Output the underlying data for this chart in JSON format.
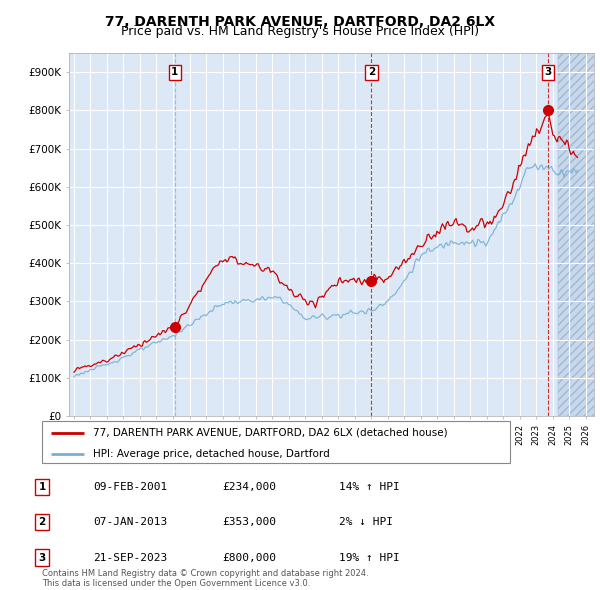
{
  "title": "77, DARENTH PARK AVENUE, DARTFORD, DA2 6LX",
  "subtitle": "Price paid vs. HM Land Registry's House Price Index (HPI)",
  "ylim": [
    0,
    950000
  ],
  "yticks": [
    0,
    100000,
    200000,
    300000,
    400000,
    500000,
    600000,
    700000,
    800000,
    900000
  ],
  "ytick_labels": [
    "£0",
    "£100K",
    "£200K",
    "£300K",
    "£400K",
    "£500K",
    "£600K",
    "£700K",
    "£800K",
    "£900K"
  ],
  "sale_years_float": [
    2001.107,
    2013.019,
    2023.722
  ],
  "sale_prices": [
    234000,
    353000,
    800000
  ],
  "sale_labels": [
    "1",
    "2",
    "3"
  ],
  "sale_vline_colors": [
    "#aaaaaa",
    "#cc0000",
    "#cc0000"
  ],
  "sale_vline_styles": [
    "--",
    "--",
    "--"
  ],
  "legend_label_red": "77, DARENTH PARK AVENUE, DARTFORD, DA2 6LX (detached house)",
  "legend_label_blue": "HPI: Average price, detached house, Dartford",
  "table_rows": [
    [
      "1",
      "09-FEB-2001",
      "£234,000",
      "14% ↑ HPI"
    ],
    [
      "2",
      "07-JAN-2013",
      "£353,000",
      "2% ↓ HPI"
    ],
    [
      "3",
      "21-SEP-2023",
      "£800,000",
      "19% ↑ HPI"
    ]
  ],
  "footer": "Contains HM Land Registry data © Crown copyright and database right 2024.\nThis data is licensed under the Open Government Licence v3.0.",
  "bg_color": "#dce8f5",
  "grid_color": "#ffffff",
  "red_color": "#cc0000",
  "blue_color": "#7ab0d4",
  "title_fontsize": 10,
  "subtitle_fontsize": 9,
  "axis_fontsize": 7.5,
  "future_start": 2024.33,
  "xlim_left": 1994.7,
  "xlim_right": 2026.5
}
